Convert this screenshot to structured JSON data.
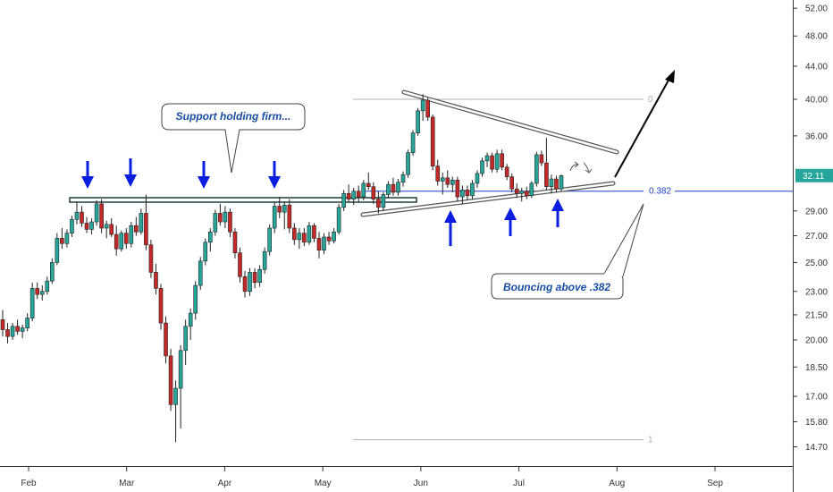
{
  "chart_data": {
    "type": "candlestick",
    "price_axis": {
      "ticks": [
        "52.00",
        "48.00",
        "44.00",
        "40.00",
        "36.00",
        "29.00",
        "27.00",
        "25.00",
        "23.00",
        "21.50",
        "20.00",
        "18.50",
        "17.00",
        "15.80",
        "14.70"
      ],
      "scale": "log",
      "current_price": "32.11"
    },
    "time_axis": {
      "ticks": [
        "Feb",
        "Mar",
        "Apr",
        "May",
        "Jun",
        "Jul",
        "Aug",
        "Sep"
      ]
    },
    "fib_levels": [
      {
        "label": "0",
        "price": 40.0
      },
      {
        "label": "0.382",
        "price": 30.7
      },
      {
        "label": "1",
        "price": 15.0
      }
    ],
    "support_level": 29.8,
    "annotations": {
      "support_callout": "Support holding firm...",
      "bounce_callout": "Bouncing above .382"
    },
    "candles": [
      {
        "o": 21.2,
        "h": 21.8,
        "l": 20.2,
        "c": 20.6
      },
      {
        "o": 20.6,
        "h": 21.0,
        "l": 19.8,
        "c": 20.2
      },
      {
        "o": 20.2,
        "h": 21.0,
        "l": 20.0,
        "c": 20.8
      },
      {
        "o": 20.8,
        "h": 21.2,
        "l": 20.3,
        "c": 20.5
      },
      {
        "o": 20.5,
        "h": 20.9,
        "l": 20.1,
        "c": 20.7
      },
      {
        "o": 20.7,
        "h": 21.6,
        "l": 20.5,
        "c": 21.3
      },
      {
        "o": 21.3,
        "h": 23.6,
        "l": 21.1,
        "c": 23.2
      },
      {
        "o": 23.2,
        "h": 23.6,
        "l": 22.5,
        "c": 22.8
      },
      {
        "o": 22.8,
        "h": 23.4,
        "l": 22.4,
        "c": 23.0
      },
      {
        "o": 23.0,
        "h": 24.0,
        "l": 22.8,
        "c": 23.7
      },
      {
        "o": 23.7,
        "h": 25.3,
        "l": 23.5,
        "c": 25.0
      },
      {
        "o": 25.0,
        "h": 27.2,
        "l": 24.8,
        "c": 26.8
      },
      {
        "o": 26.8,
        "h": 27.6,
        "l": 26.0,
        "c": 26.4
      },
      {
        "o": 26.4,
        "h": 27.5,
        "l": 26.1,
        "c": 27.2
      },
      {
        "o": 27.2,
        "h": 28.6,
        "l": 26.9,
        "c": 28.3
      },
      {
        "o": 28.3,
        "h": 29.8,
        "l": 27.9,
        "c": 28.9
      },
      {
        "o": 28.9,
        "h": 29.4,
        "l": 27.7,
        "c": 28.0
      },
      {
        "o": 28.0,
        "h": 28.5,
        "l": 27.2,
        "c": 27.5
      },
      {
        "o": 27.5,
        "h": 28.4,
        "l": 27.1,
        "c": 28.1
      },
      {
        "o": 28.1,
        "h": 29.9,
        "l": 27.8,
        "c": 29.6
      },
      {
        "o": 29.6,
        "h": 30.0,
        "l": 27.2,
        "c": 27.6
      },
      {
        "o": 27.6,
        "h": 28.2,
        "l": 26.8,
        "c": 27.9
      },
      {
        "o": 27.9,
        "h": 28.4,
        "l": 26.9,
        "c": 27.1
      },
      {
        "o": 27.1,
        "h": 27.8,
        "l": 25.5,
        "c": 26.0
      },
      {
        "o": 26.0,
        "h": 27.4,
        "l": 25.8,
        "c": 27.2
      },
      {
        "o": 27.2,
        "h": 27.6,
        "l": 26.0,
        "c": 26.4
      },
      {
        "o": 26.4,
        "h": 28.1,
        "l": 26.1,
        "c": 27.8
      },
      {
        "o": 27.8,
        "h": 28.5,
        "l": 27.0,
        "c": 27.3
      },
      {
        "o": 27.3,
        "h": 29.2,
        "l": 27.1,
        "c": 28.8
      },
      {
        "o": 28.8,
        "h": 30.4,
        "l": 25.9,
        "c": 26.3
      },
      {
        "o": 26.3,
        "h": 26.7,
        "l": 23.9,
        "c": 24.3
      },
      {
        "o": 24.3,
        "h": 24.9,
        "l": 22.8,
        "c": 23.2
      },
      {
        "o": 23.2,
        "h": 23.5,
        "l": 20.6,
        "c": 21.0
      },
      {
        "o": 21.0,
        "h": 21.4,
        "l": 18.7,
        "c": 19.1
      },
      {
        "o": 19.1,
        "h": 19.5,
        "l": 16.3,
        "c": 16.6
      },
      {
        "o": 16.6,
        "h": 17.8,
        "l": 14.9,
        "c": 17.4
      },
      {
        "o": 17.4,
        "h": 19.7,
        "l": 15.5,
        "c": 19.4
      },
      {
        "o": 19.4,
        "h": 21.2,
        "l": 18.6,
        "c": 20.8
      },
      {
        "o": 20.8,
        "h": 21.9,
        "l": 20.0,
        "c": 21.6
      },
      {
        "o": 21.6,
        "h": 23.7,
        "l": 21.2,
        "c": 23.4
      },
      {
        "o": 23.4,
        "h": 25.4,
        "l": 23.1,
        "c": 25.1
      },
      {
        "o": 25.1,
        "h": 26.8,
        "l": 24.8,
        "c": 26.5
      },
      {
        "o": 26.5,
        "h": 27.6,
        "l": 25.8,
        "c": 27.3
      },
      {
        "o": 27.3,
        "h": 29.1,
        "l": 27.0,
        "c": 28.8
      },
      {
        "o": 28.8,
        "h": 29.6,
        "l": 27.8,
        "c": 28.1
      },
      {
        "o": 28.1,
        "h": 29.4,
        "l": 27.6,
        "c": 28.9
      },
      {
        "o": 28.9,
        "h": 29.2,
        "l": 26.9,
        "c": 27.3
      },
      {
        "o": 27.3,
        "h": 27.6,
        "l": 25.3,
        "c": 25.7
      },
      {
        "o": 25.7,
        "h": 26.1,
        "l": 23.6,
        "c": 24.0
      },
      {
        "o": 24.0,
        "h": 24.4,
        "l": 22.6,
        "c": 23.0
      },
      {
        "o": 23.0,
        "h": 24.6,
        "l": 22.7,
        "c": 24.3
      },
      {
        "o": 24.3,
        "h": 24.6,
        "l": 23.2,
        "c": 23.6
      },
      {
        "o": 23.6,
        "h": 24.8,
        "l": 23.3,
        "c": 24.5
      },
      {
        "o": 24.5,
        "h": 26.1,
        "l": 24.2,
        "c": 25.8
      },
      {
        "o": 25.8,
        "h": 27.9,
        "l": 25.5,
        "c": 27.6
      },
      {
        "o": 27.6,
        "h": 29.8,
        "l": 27.2,
        "c": 29.4
      },
      {
        "o": 29.4,
        "h": 30.2,
        "l": 28.4,
        "c": 28.9
      },
      {
        "o": 28.9,
        "h": 29.8,
        "l": 27.5,
        "c": 29.5
      },
      {
        "o": 29.5,
        "h": 30.0,
        "l": 27.2,
        "c": 27.6
      },
      {
        "o": 27.6,
        "h": 28.0,
        "l": 26.3,
        "c": 26.7
      },
      {
        "o": 26.7,
        "h": 27.6,
        "l": 26.0,
        "c": 27.2
      },
      {
        "o": 27.2,
        "h": 27.6,
        "l": 26.2,
        "c": 26.5
      },
      {
        "o": 26.5,
        "h": 28.1,
        "l": 26.3,
        "c": 27.8
      },
      {
        "o": 27.8,
        "h": 28.0,
        "l": 26.5,
        "c": 26.8
      },
      {
        "o": 26.8,
        "h": 27.3,
        "l": 25.3,
        "c": 25.9
      },
      {
        "o": 25.9,
        "h": 27.2,
        "l": 25.6,
        "c": 26.9
      },
      {
        "o": 26.9,
        "h": 27.3,
        "l": 26.3,
        "c": 26.6
      },
      {
        "o": 26.6,
        "h": 27.6,
        "l": 26.4,
        "c": 27.3
      },
      {
        "o": 27.3,
        "h": 29.6,
        "l": 27.1,
        "c": 29.3
      },
      {
        "o": 29.3,
        "h": 30.8,
        "l": 29.0,
        "c": 30.5
      },
      {
        "o": 30.5,
        "h": 31.3,
        "l": 29.7,
        "c": 30.0
      },
      {
        "o": 30.0,
        "h": 31.0,
        "l": 29.5,
        "c": 30.7
      },
      {
        "o": 30.7,
        "h": 31.2,
        "l": 29.8,
        "c": 30.2
      },
      {
        "o": 30.2,
        "h": 31.7,
        "l": 29.9,
        "c": 31.4
      },
      {
        "o": 31.4,
        "h": 32.4,
        "l": 30.8,
        "c": 31.1
      },
      {
        "o": 31.1,
        "h": 31.5,
        "l": 29.6,
        "c": 30.0
      },
      {
        "o": 30.0,
        "h": 30.7,
        "l": 28.8,
        "c": 29.3
      },
      {
        "o": 29.3,
        "h": 30.6,
        "l": 29.0,
        "c": 30.4
      },
      {
        "o": 30.4,
        "h": 31.6,
        "l": 30.1,
        "c": 31.3
      },
      {
        "o": 31.3,
        "h": 31.9,
        "l": 30.3,
        "c": 30.6
      },
      {
        "o": 30.6,
        "h": 31.8,
        "l": 30.3,
        "c": 31.5
      },
      {
        "o": 31.5,
        "h": 32.5,
        "l": 31.1,
        "c": 32.2
      },
      {
        "o": 32.2,
        "h": 34.6,
        "l": 31.9,
        "c": 34.3
      },
      {
        "o": 34.3,
        "h": 36.6,
        "l": 34.0,
        "c": 36.3
      },
      {
        "o": 36.3,
        "h": 39.0,
        "l": 36.0,
        "c": 38.7
      },
      {
        "o": 38.7,
        "h": 40.6,
        "l": 37.6,
        "c": 39.9
      },
      {
        "o": 39.9,
        "h": 40.2,
        "l": 37.6,
        "c": 38.0
      },
      {
        "o": 38.0,
        "h": 38.3,
        "l": 32.6,
        "c": 33.0
      },
      {
        "o": 33.0,
        "h": 33.6,
        "l": 31.2,
        "c": 31.6
      },
      {
        "o": 31.6,
        "h": 32.4,
        "l": 30.4,
        "c": 31.9
      },
      {
        "o": 31.9,
        "h": 32.6,
        "l": 31.0,
        "c": 31.3
      },
      {
        "o": 31.3,
        "h": 32.0,
        "l": 30.6,
        "c": 31.7
      },
      {
        "o": 31.7,
        "h": 32.0,
        "l": 29.8,
        "c": 30.2
      },
      {
        "o": 30.2,
        "h": 31.2,
        "l": 29.6,
        "c": 30.8
      },
      {
        "o": 30.8,
        "h": 31.2,
        "l": 29.9,
        "c": 30.3
      },
      {
        "o": 30.3,
        "h": 31.7,
        "l": 30.0,
        "c": 31.4
      },
      {
        "o": 31.4,
        "h": 32.6,
        "l": 31.0,
        "c": 32.3
      },
      {
        "o": 32.3,
        "h": 33.8,
        "l": 32.0,
        "c": 33.5
      },
      {
        "o": 33.5,
        "h": 34.3,
        "l": 32.9,
        "c": 34.0
      },
      {
        "o": 34.0,
        "h": 34.3,
        "l": 32.4,
        "c": 32.7
      },
      {
        "o": 32.7,
        "h": 34.6,
        "l": 32.4,
        "c": 34.2
      },
      {
        "o": 34.2,
        "h": 34.6,
        "l": 32.6,
        "c": 32.9
      },
      {
        "o": 32.9,
        "h": 33.2,
        "l": 31.7,
        "c": 32.0
      },
      {
        "o": 32.0,
        "h": 32.3,
        "l": 30.6,
        "c": 30.9
      },
      {
        "o": 30.9,
        "h": 31.4,
        "l": 30.1,
        "c": 30.5
      },
      {
        "o": 30.5,
        "h": 31.0,
        "l": 29.8,
        "c": 30.7
      },
      {
        "o": 30.7,
        "h": 31.1,
        "l": 30.0,
        "c": 30.3
      },
      {
        "o": 30.3,
        "h": 31.6,
        "l": 30.1,
        "c": 31.4
      },
      {
        "o": 31.4,
        "h": 34.4,
        "l": 31.1,
        "c": 34.1
      },
      {
        "o": 34.1,
        "h": 34.5,
        "l": 33.0,
        "c": 33.3
      },
      {
        "o": 33.3,
        "h": 35.8,
        "l": 30.8,
        "c": 31.1
      },
      {
        "o": 31.1,
        "h": 32.2,
        "l": 30.5,
        "c": 31.8
      },
      {
        "o": 31.8,
        "h": 32.1,
        "l": 30.6,
        "c": 30.9
      },
      {
        "o": 30.9,
        "h": 32.2,
        "l": 30.7,
        "c": 32.1
      }
    ]
  }
}
